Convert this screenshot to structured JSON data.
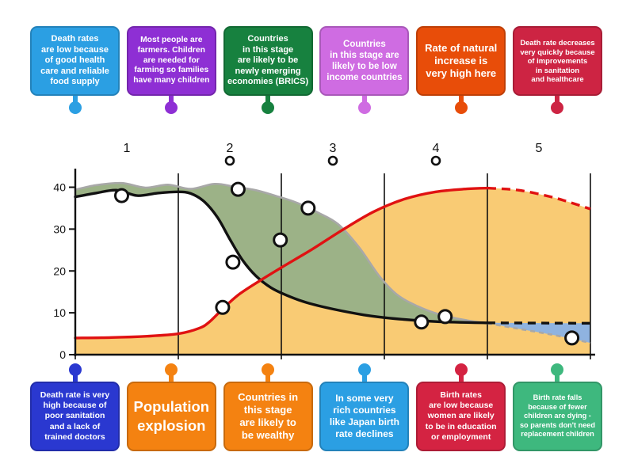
{
  "labels_top": [
    {
      "text": "Death rates\nare low because\nof good health\ncare and reliable\nfood supply",
      "color": "#2b9fe3"
    },
    {
      "text": "Most people are\nfarmers. Children\nare needed for\nfarming so families\nhave many children",
      "color": "#8e2fd4"
    },
    {
      "text": "Countries\nin this stage\nare likely to be\nnewly emerging\neconomies (BRICS)",
      "color": "#17813f"
    },
    {
      "text": "Countries\nin this stage are\nlikely to be low\nincome countries",
      "color": "#cf6ce2"
    },
    {
      "text": "Rate of natural\nincrease is\nvery high here",
      "color": "#e84d09"
    },
    {
      "text": "Death rate decreases\nvery quickly because\nof improvements\nin sanitation\nand healthcare",
      "color": "#cd2443"
    }
  ],
  "labels_bottom": [
    {
      "text": "Death rate is very\nhigh because of\npoor sanitation\nand a lack of\ntrained doctors",
      "color": "#2a38d0"
    },
    {
      "text": "Population\nexplosion",
      "color": "#f48211"
    },
    {
      "text": "Countries in\nthis stage\nare likely to\nbe wealthy",
      "color": "#f48211"
    },
    {
      "text": "In some very\nrich countries\nlike Japan birth\nrate declines",
      "color": "#2b9fe3"
    },
    {
      "text": "Birth rates\nare low because\nwomen are likely\nto be in education\nor employment",
      "color": "#d42342"
    },
    {
      "text": "Birth rate falls\nbecause of fewer\nchildren are dying -\nso parents don't need\nreplacement children",
      "color": "#3eb87e"
    }
  ],
  "chart_data": {
    "type": "line",
    "description": "Demographic Transition Model (no visible title)",
    "stages": [
      "1",
      "2",
      "3",
      "4",
      "5"
    ],
    "stage_lines_u": [
      1,
      2,
      3,
      4,
      5
    ],
    "y_ticks": [
      0,
      10,
      20,
      30,
      40
    ],
    "ylim": [
      0,
      45
    ],
    "x_axis_units": "stages 1-5 (u = 0..5 across plot)",
    "series": {
      "birth_rate": {
        "label": "birth rate (wavy grey boundary)",
        "color": "#a8a8a8",
        "solid": [
          [
            0,
            39.4
          ],
          [
            0.2,
            40.5
          ],
          [
            0.45,
            41.0
          ],
          [
            0.68,
            39.9
          ],
          [
            0.9,
            40.6
          ],
          [
            1.12,
            39.6
          ],
          [
            1.35,
            40.8
          ],
          [
            1.55,
            40.1
          ],
          [
            1.75,
            39.3
          ],
          [
            1.95,
            37.9
          ],
          [
            2.15,
            36.3
          ],
          [
            2.35,
            34.0
          ],
          [
            2.55,
            31.2
          ],
          [
            2.75,
            25.8
          ],
          [
            2.95,
            18.8
          ],
          [
            3.12,
            14.4
          ],
          [
            3.32,
            11.6
          ],
          [
            3.55,
            9.5
          ],
          [
            3.8,
            8.2
          ],
          [
            4.0,
            7.5
          ]
        ],
        "dashed": [
          [
            4.0,
            7.5
          ],
          [
            4.3,
            6.2
          ],
          [
            4.6,
            4.9
          ],
          [
            4.82,
            3.8
          ],
          [
            5,
            2.8
          ]
        ]
      },
      "death_rate": {
        "label": "death rate (black line)",
        "color": "#111111",
        "solid": [
          [
            0,
            37.7
          ],
          [
            0.2,
            38.6
          ],
          [
            0.4,
            39.3
          ],
          [
            0.6,
            38.0
          ],
          [
            0.8,
            38.6
          ],
          [
            1.0,
            38.9
          ],
          [
            1.12,
            38.5
          ],
          [
            1.25,
            36.6
          ],
          [
            1.38,
            32.8
          ],
          [
            1.5,
            27.6
          ],
          [
            1.62,
            22.7
          ],
          [
            1.75,
            18.9
          ],
          [
            1.9,
            16.0
          ],
          [
            2.05,
            14.2
          ],
          [
            2.25,
            12.4
          ],
          [
            2.5,
            10.9
          ],
          [
            2.8,
            9.5
          ],
          [
            3.1,
            8.6
          ],
          [
            3.5,
            7.9
          ],
          [
            4.0,
            7.6
          ]
        ],
        "dashed": [
          [
            4.0,
            7.6
          ],
          [
            5,
            7.5
          ]
        ]
      },
      "total_population": {
        "label": "total population (red S-curve)",
        "color": "#e01212",
        "solid": [
          [
            0,
            4.0
          ],
          [
            0.35,
            4.1
          ],
          [
            0.7,
            4.4
          ],
          [
            1.0,
            5.0
          ],
          [
            1.2,
            6.3
          ],
          [
            1.3,
            7.8
          ],
          [
            1.45,
            11.4
          ],
          [
            1.6,
            14.6
          ],
          [
            1.8,
            17.8
          ],
          [
            2.0,
            20.8
          ],
          [
            2.3,
            25.2
          ],
          [
            2.6,
            29.9
          ],
          [
            2.9,
            34.2
          ],
          [
            3.2,
            37.2
          ],
          [
            3.5,
            38.9
          ],
          [
            3.8,
            39.6
          ],
          [
            4.0,
            39.8
          ]
        ],
        "dashed": [
          [
            4.0,
            39.8
          ],
          [
            4.3,
            39.3
          ],
          [
            4.6,
            37.8
          ],
          [
            4.8,
            36.4
          ],
          [
            5,
            34.8
          ]
        ]
      }
    },
    "areas": {
      "population_color": "#f9cb74",
      "natural_increase_color": "#9cb287",
      "natural_decrease_color": "#8fb3e0"
    },
    "markers": [
      [
        0.45,
        38.0
      ],
      [
        1.58,
        39.5
      ],
      [
        1.53,
        22.1
      ],
      [
        1.43,
        11.3
      ],
      [
        1.99,
        27.4
      ],
      [
        2.26,
        35.0
      ],
      [
        3.36,
        7.8
      ],
      [
        3.59,
        9.1
      ],
      [
        4.82,
        4.0
      ]
    ],
    "stage_dots_u": [
      1.5,
      2.5,
      3.5
    ],
    "legend": "none visible",
    "grid": "vertical stage boundary lines only"
  }
}
